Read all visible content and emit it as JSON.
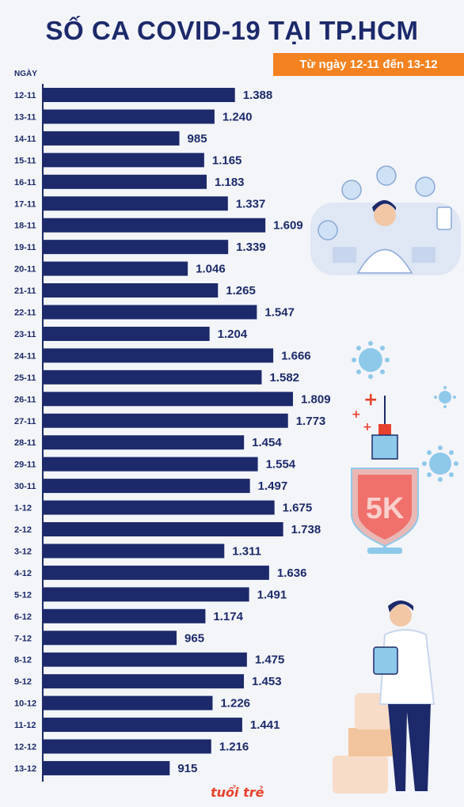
{
  "header": {
    "title": "SỐ CA COVID-19 TẠI TP.HCM",
    "subtitle": "Từ ngày 12-11 đến 13-12",
    "axis_label": "NGÀY"
  },
  "colors": {
    "bar": "#1c2a6b",
    "accent": "#f58220",
    "background": "#f4f5f9",
    "shield": "#f0716c",
    "virus": "#8ec9ea"
  },
  "illustrations": [
    "medical-staff-icon",
    "virus-icon",
    "vaccine-syringe-icon",
    "5k-shield-icon",
    "doctor-icon"
  ],
  "shield_text": "5K",
  "logo": "tuổi trẻ",
  "chart_data": {
    "type": "bar",
    "orientation": "horizontal",
    "title": "SỐ CA COVID-19 TẠI TP.HCM",
    "subtitle": "Từ ngày 12-11 đến 13-12",
    "xlabel": "",
    "ylabel": "NGÀY",
    "categories": [
      "12-11",
      "13-11",
      "14-11",
      "15-11",
      "16-11",
      "17-11",
      "18-11",
      "19-11",
      "20-11",
      "21-11",
      "22-11",
      "23-11",
      "24-11",
      "25-11",
      "26-11",
      "27-11",
      "28-11",
      "29-11",
      "30-11",
      "1-12",
      "2-12",
      "3-12",
      "4-12",
      "5-12",
      "6-12",
      "7-12",
      "8-12",
      "9-12",
      "10-12",
      "11-12",
      "12-12",
      "13-12"
    ],
    "values": [
      1388,
      1240,
      985,
      1165,
      1183,
      1337,
      1609,
      1339,
      1046,
      1265,
      1547,
      1204,
      1666,
      1582,
      1809,
      1773,
      1454,
      1554,
      1497,
      1675,
      1738,
      1311,
      1636,
      1491,
      1174,
      965,
      1475,
      1453,
      1226,
      1441,
      1216,
      915
    ],
    "value_labels": [
      "1.388",
      "1.240",
      "985",
      "1.165",
      "1.183",
      "1.337",
      "1.609",
      "1.339",
      "1.046",
      "1.265",
      "1.547",
      "1.204",
      "1.666",
      "1.582",
      "1.809",
      "1.773",
      "1.454",
      "1.554",
      "1.497",
      "1.675",
      "1.738",
      "1.311",
      "1.636",
      "1.491",
      "1.174",
      "965",
      "1.475",
      "1.453",
      "1.226",
      "1.441",
      "1.216",
      "915"
    ],
    "grid": false,
    "legend": "none"
  }
}
